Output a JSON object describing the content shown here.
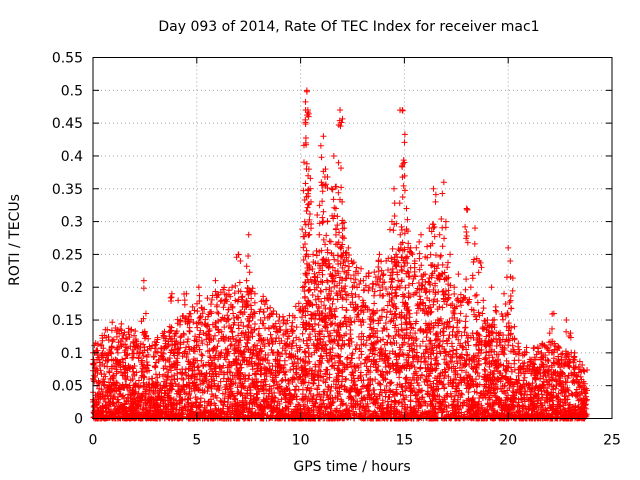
{
  "chart_data": {
    "type": "scatter",
    "title": "Day 093 of 2014, Rate Of TEC Index for receiver mac1",
    "xlabel": "GPS time / hours",
    "ylabel": "ROTI / TECUs",
    "xlim": [
      0,
      25
    ],
    "ylim": [
      0,
      0.55
    ],
    "xticks": [
      0,
      5,
      10,
      15,
      20,
      25
    ],
    "xtick_labels": [
      "0",
      "5",
      "10",
      "15",
      "20",
      "25"
    ],
    "yticks": [
      0,
      0.05,
      0.1,
      0.15,
      0.2,
      0.25,
      0.3,
      0.35,
      0.4,
      0.45,
      0.5,
      0.55
    ],
    "ytick_labels": [
      "0",
      "0.05",
      "0.1",
      "0.15",
      "0.2",
      "0.25",
      "0.3",
      "0.35",
      "0.4",
      "0.45",
      "0.5",
      "0.55"
    ],
    "grid": true,
    "marker": "+",
    "color": "#ff0000",
    "series": [
      {
        "name": "ROTI",
        "points": [
          [
            0.1,
            0.02
          ],
          [
            0.15,
            0.1
          ],
          [
            0.2,
            0.05
          ],
          [
            0.3,
            0.09
          ],
          [
            0.35,
            0.03
          ],
          [
            0.5,
            0.06
          ],
          [
            0.6,
            0.02
          ],
          [
            0.7,
            0.04
          ],
          [
            0.8,
            0.07
          ],
          [
            0.9,
            0.11
          ],
          [
            1.0,
            0.12
          ],
          [
            1.1,
            0.08
          ],
          [
            1.2,
            0.1
          ],
          [
            1.3,
            0.05
          ],
          [
            1.4,
            0.09
          ],
          [
            1.5,
            0.03
          ],
          [
            1.6,
            0.06
          ],
          [
            1.8,
            0.11
          ],
          [
            1.9,
            0.04
          ],
          [
            2.0,
            0.08
          ],
          [
            2.1,
            0.07
          ],
          [
            2.2,
            0.02
          ],
          [
            2.3,
            0.05
          ],
          [
            2.45,
            0.21
          ],
          [
            2.5,
            0.13
          ],
          [
            2.55,
            0.16
          ],
          [
            2.7,
            0.06
          ],
          [
            2.9,
            0.03
          ],
          [
            3.0,
            0.05
          ],
          [
            3.2,
            0.04
          ],
          [
            3.4,
            0.09
          ],
          [
            3.6,
            0.11
          ],
          [
            3.7,
            0.14
          ],
          [
            3.8,
            0.19
          ],
          [
            4.0,
            0.13
          ],
          [
            4.1,
            0.18
          ],
          [
            4.2,
            0.07
          ],
          [
            4.4,
            0.1
          ],
          [
            4.5,
            0.19
          ],
          [
            4.6,
            0.15
          ],
          [
            4.8,
            0.17
          ],
          [
            5.0,
            0.12
          ],
          [
            5.1,
            0.2
          ],
          [
            5.3,
            0.08
          ],
          [
            5.5,
            0.14
          ],
          [
            5.7,
            0.16
          ],
          [
            5.9,
            0.21
          ],
          [
            6.0,
            0.11
          ],
          [
            6.2,
            0.18
          ],
          [
            6.4,
            0.09
          ],
          [
            6.5,
            0.15
          ],
          [
            6.7,
            0.2
          ],
          [
            6.9,
            0.12
          ],
          [
            7.0,
            0.25
          ],
          [
            7.1,
            0.24
          ],
          [
            7.2,
            0.17
          ],
          [
            7.4,
            0.21
          ],
          [
            7.5,
            0.28
          ],
          [
            7.6,
            0.13
          ],
          [
            7.8,
            0.19
          ],
          [
            8.0,
            0.1
          ],
          [
            8.2,
            0.18
          ],
          [
            8.4,
            0.12
          ],
          [
            8.6,
            0.16
          ],
          [
            8.8,
            0.09
          ],
          [
            9.0,
            0.14
          ],
          [
            9.2,
            0.15
          ],
          [
            9.4,
            0.11
          ],
          [
            9.6,
            0.13
          ],
          [
            9.8,
            0.07
          ],
          [
            10.0,
            0.09
          ],
          [
            10.1,
            0.17
          ],
          [
            10.2,
            0.3
          ],
          [
            10.25,
            0.42
          ],
          [
            10.3,
            0.5
          ],
          [
            10.35,
            0.47
          ],
          [
            10.4,
            0.38
          ],
          [
            10.5,
            0.33
          ],
          [
            10.6,
            0.25
          ],
          [
            10.7,
            0.21
          ],
          [
            10.8,
            0.31
          ],
          [
            10.9,
            0.28
          ],
          [
            11.0,
            0.36
          ],
          [
            11.1,
            0.43
          ],
          [
            11.2,
            0.38
          ],
          [
            11.3,
            0.3
          ],
          [
            11.4,
            0.27
          ],
          [
            11.5,
            0.35
          ],
          [
            11.6,
            0.4
          ],
          [
            11.7,
            0.32
          ],
          [
            11.8,
            0.24
          ],
          [
            11.9,
            0.47
          ],
          [
            12.0,
            0.33
          ],
          [
            12.1,
            0.29
          ],
          [
            12.3,
            0.26
          ],
          [
            12.5,
            0.2
          ],
          [
            12.7,
            0.23
          ],
          [
            13.0,
            0.18
          ],
          [
            13.3,
            0.2
          ],
          [
            13.5,
            0.15
          ],
          [
            13.8,
            0.25
          ],
          [
            14.0,
            0.22
          ],
          [
            14.2,
            0.19
          ],
          [
            14.4,
            0.3
          ],
          [
            14.5,
            0.35
          ],
          [
            14.6,
            0.25
          ],
          [
            14.8,
            0.28
          ],
          [
            14.9,
            0.47
          ],
          [
            15.0,
            0.39
          ],
          [
            15.1,
            0.32
          ],
          [
            15.3,
            0.26
          ],
          [
            15.5,
            0.24
          ],
          [
            15.8,
            0.28
          ],
          [
            16.0,
            0.22
          ],
          [
            16.2,
            0.29
          ],
          [
            16.4,
            0.35
          ],
          [
            16.5,
            0.33
          ],
          [
            16.7,
            0.28
          ],
          [
            16.9,
            0.36
          ],
          [
            17.0,
            0.3
          ],
          [
            17.2,
            0.25
          ],
          [
            17.4,
            0.2
          ],
          [
            17.6,
            0.22
          ],
          [
            17.8,
            0.18
          ],
          [
            18.0,
            0.32
          ],
          [
            18.2,
            0.2
          ],
          [
            18.4,
            0.29
          ],
          [
            18.6,
            0.24
          ],
          [
            18.8,
            0.18
          ],
          [
            19.0,
            0.15
          ],
          [
            19.2,
            0.2
          ],
          [
            19.4,
            0.17
          ],
          [
            19.6,
            0.12
          ],
          [
            19.8,
            0.19
          ],
          [
            20.0,
            0.26
          ],
          [
            20.1,
            0.24
          ],
          [
            20.3,
            0.14
          ],
          [
            20.6,
            0.08
          ],
          [
            21.0,
            0.05
          ],
          [
            21.3,
            0.06
          ],
          [
            21.6,
            0.1
          ],
          [
            21.8,
            0.07
          ],
          [
            22.0,
            0.13
          ],
          [
            22.2,
            0.16
          ],
          [
            22.4,
            0.11
          ],
          [
            22.6,
            0.07
          ],
          [
            22.8,
            0.15
          ],
          [
            23.0,
            0.13
          ],
          [
            23.2,
            0.1
          ],
          [
            23.4,
            0.07
          ],
          [
            23.6,
            0.05
          ],
          [
            23.7,
            0.03
          ]
        ],
        "baseline_envelope": {
          "x": [
            0,
            1,
            2,
            3,
            4,
            5,
            6,
            7,
            8,
            9,
            10,
            11,
            12,
            13,
            14,
            15,
            16,
            17,
            18,
            19,
            20,
            21,
            22,
            23,
            23.8
          ],
          "max": [
            0.08,
            0.1,
            0.09,
            0.08,
            0.1,
            0.12,
            0.13,
            0.14,
            0.13,
            0.11,
            0.12,
            0.16,
            0.18,
            0.15,
            0.16,
            0.18,
            0.17,
            0.15,
            0.13,
            0.1,
            0.09,
            0.07,
            0.08,
            0.07,
            0.05
          ]
        }
      }
    ]
  }
}
